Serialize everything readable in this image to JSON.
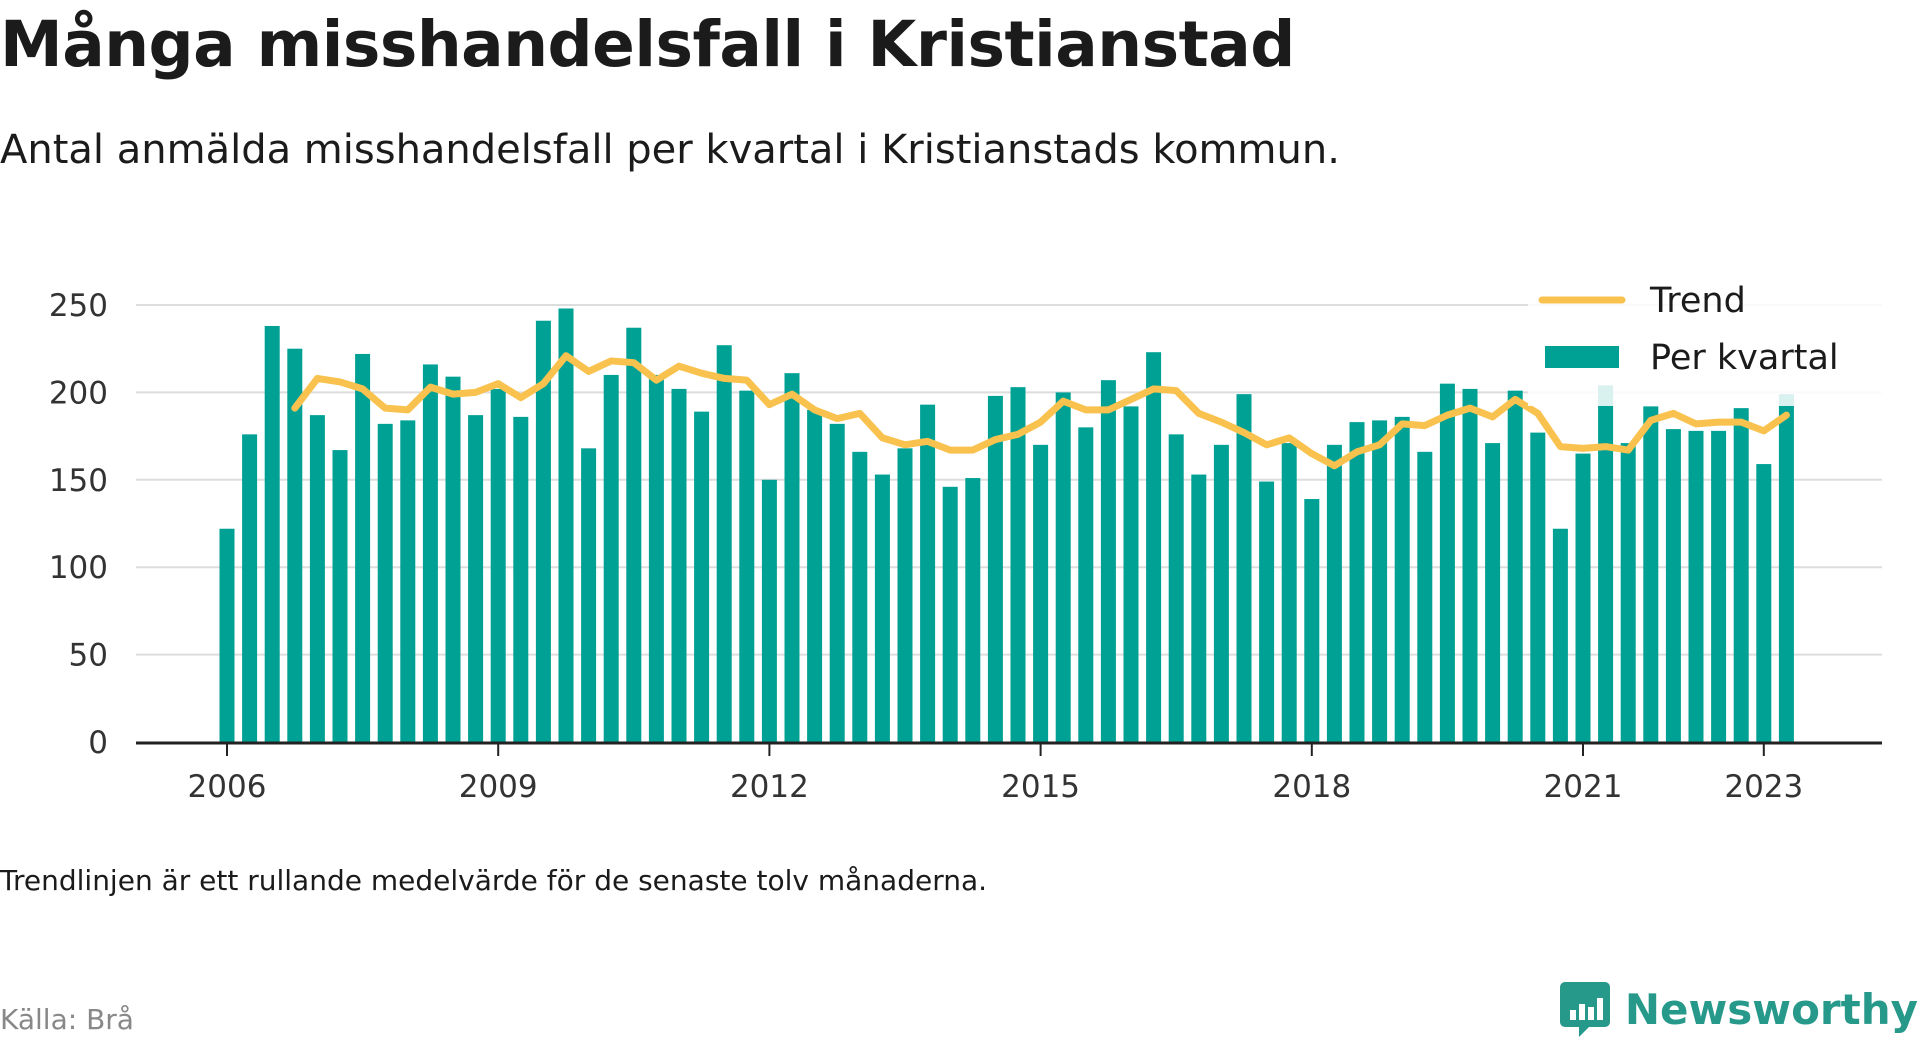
{
  "title": "Många misshandelsfall i Kristianstad",
  "subtitle": "Antal anmälda misshandelsfall per kvartal i Kristianstads kommun.",
  "note": "Trendlinjen är ett rullande medelvärde för de senaste tolv månaderna.",
  "source": "Källa: Brå",
  "brand": {
    "name": "Newsworthy",
    "icon": "newsworthy-logo-icon",
    "color": "#26998a"
  },
  "colors": {
    "bars": "#00a195",
    "trend": "#f9c24e",
    "axis": "#222222",
    "grid": "#dddddd",
    "text": "#1b1b1b"
  },
  "chart_data": {
    "type": "bar",
    "title": "Många misshandelsfall i Kristianstad",
    "xlabel": "",
    "ylabel": "",
    "ylim": [
      0,
      250
    ],
    "yticks": [
      0,
      50,
      100,
      150,
      200,
      250
    ],
    "xticks": [
      "2006",
      "2009",
      "2012",
      "2015",
      "2018",
      "2021",
      "2023"
    ],
    "grid": true,
    "legend_position": "top-right",
    "start": "2006 Q1",
    "categories": [
      "2006 Q1",
      "2006 Q2",
      "2006 Q3",
      "2006 Q4",
      "2007 Q1",
      "2007 Q2",
      "2007 Q3",
      "2007 Q4",
      "2008 Q1",
      "2008 Q2",
      "2008 Q3",
      "2008 Q4",
      "2009 Q1",
      "2009 Q2",
      "2009 Q3",
      "2009 Q4",
      "2010 Q1",
      "2010 Q2",
      "2010 Q3",
      "2010 Q4",
      "2011 Q1",
      "2011 Q2",
      "2011 Q3",
      "2011 Q4",
      "2012 Q1",
      "2012 Q2",
      "2012 Q3",
      "2012 Q4",
      "2013 Q1",
      "2013 Q2",
      "2013 Q3",
      "2013 Q4",
      "2014 Q1",
      "2014 Q2",
      "2014 Q3",
      "2014 Q4",
      "2015 Q1",
      "2015 Q2",
      "2015 Q3",
      "2015 Q4",
      "2016 Q1",
      "2016 Q2",
      "2016 Q3",
      "2016 Q4",
      "2017 Q1",
      "2017 Q2",
      "2017 Q3",
      "2017 Q4",
      "2018 Q1",
      "2018 Q2",
      "2018 Q3",
      "2018 Q4",
      "2019 Q1",
      "2019 Q2",
      "2019 Q3",
      "2019 Q4",
      "2020 Q1",
      "2020 Q2",
      "2020 Q3",
      "2020 Q4",
      "2021 Q1",
      "2021 Q2",
      "2021 Q3",
      "2021 Q4",
      "2022 Q1",
      "2022 Q2",
      "2022 Q3",
      "2022 Q4",
      "2023 Q1",
      "2023 Q2"
    ],
    "series": [
      {
        "name": "Per kvartal",
        "type": "bar",
        "color": "#00a195",
        "values": [
          122,
          176,
          238,
          225,
          187,
          167,
          222,
          182,
          184,
          216,
          209,
          187,
          202,
          186,
          241,
          248,
          168,
          210,
          237,
          210,
          202,
          189,
          227,
          201,
          150,
          211,
          190,
          182,
          166,
          153,
          168,
          193,
          146,
          151,
          198,
          203,
          170,
          200,
          180,
          207,
          192,
          223,
          176,
          153,
          170,
          199,
          149,
          171,
          139,
          170,
          183,
          184,
          186,
          166,
          205,
          202,
          171,
          201,
          177,
          122,
          165,
          204,
          171,
          192,
          179,
          178,
          178,
          191,
          159,
          199
        ]
      },
      {
        "name": "Trend",
        "type": "line",
        "color": "#f9c24e",
        "values": [
          null,
          null,
          null,
          191,
          208,
          206,
          202,
          191,
          190,
          203,
          199,
          200,
          205,
          197,
          205,
          221,
          212,
          218,
          217,
          207,
          215,
          211,
          208,
          207,
          193,
          199,
          190,
          185,
          188,
          174,
          170,
          172,
          167,
          167,
          173,
          176,
          183,
          195,
          190,
          190,
          196,
          202,
          201,
          188,
          183,
          177,
          170,
          174,
          165,
          158,
          166,
          170,
          182,
          181,
          187,
          191,
          186,
          196,
          188,
          169,
          168,
          169,
          167,
          184,
          188,
          182,
          183,
          183,
          178,
          187
        ]
      }
    ]
  }
}
